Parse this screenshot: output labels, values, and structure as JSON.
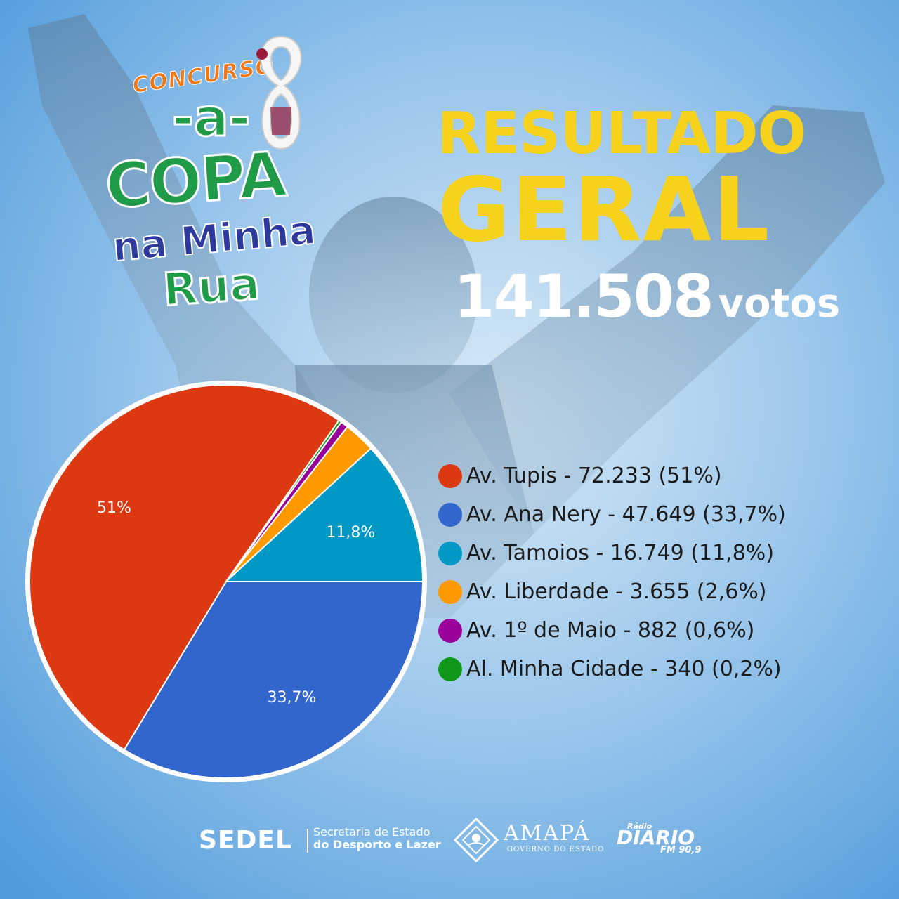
{
  "logo": {
    "concurso": "CONCURSO",
    "a": "-a-",
    "copa": "COPA",
    "na_minha": "na Minha",
    "rua": "Rua"
  },
  "headline": {
    "line1": "RESULTADO",
    "line2": "GERAL",
    "total_number": "141.508",
    "total_unit": "votos"
  },
  "chart_data": {
    "type": "pie",
    "title": "",
    "series": [
      {
        "label": "Av. Tupis - 72.233 (51%)",
        "value": 72233,
        "percent": 51,
        "slice_label": "51%",
        "color": "#dc3912"
      },
      {
        "label": "Av. Ana Nery - 47.649 (33,7%)",
        "value": 47649,
        "percent": 33.7,
        "slice_label": "33,7%",
        "color": "#3366cc"
      },
      {
        "label": "Av. Tamoios - 16.749 (11,8%)",
        "value": 16749,
        "percent": 11.8,
        "slice_label": "11,8%",
        "color": "#0099c6"
      },
      {
        "label": "Av. Liberdade - 3.655 (2,6%)",
        "value": 3655,
        "percent": 2.6,
        "slice_label": "",
        "color": "#ff9900"
      },
      {
        "label": "Av. 1º de Maio - 882 (0,6%)",
        "value": 882,
        "percent": 0.6,
        "slice_label": "",
        "color": "#990099"
      },
      {
        "label": "Al. Minha Cidade - 340 (0,2%)",
        "value": 340,
        "percent": 0.2,
        "slice_label": "",
        "color": "#109618"
      }
    ],
    "legend_position": "right"
  },
  "footer": {
    "sedel": "SEDEL",
    "sedel_line1": "Secretaria de Estado",
    "sedel_line2": "do Desporto e Lazer",
    "amapa": "AMAPÁ",
    "amapa_sub": "GOVERNO DO ESTADO",
    "radio_small": "Rádio",
    "diario": "DIÁRIO",
    "fm": "FM 90,9"
  }
}
